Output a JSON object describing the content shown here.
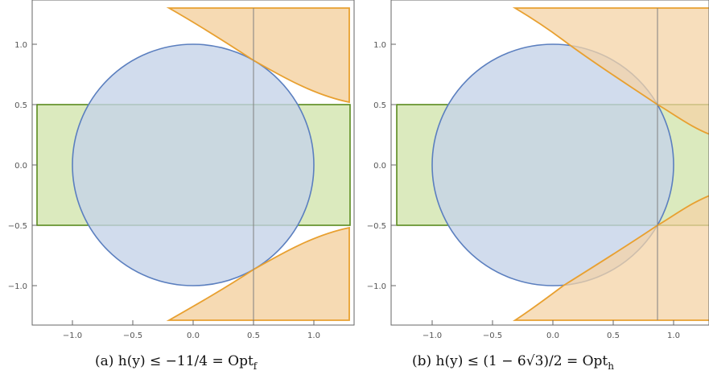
{
  "colors": {
    "circle_fill": "#c6d3e9",
    "circle_stroke": "#5b7fbf",
    "rect_fill": "#cfe3a8",
    "rect_stroke": "#5a8a1e",
    "region_fill": "#f4d3a6",
    "region_stroke": "#e8a030",
    "vline": "#808080",
    "frame": "#666666"
  },
  "panels": [
    {
      "id": "a",
      "caption": "(a)  h(y) ≤ −11/4 = Opt",
      "caption_sub": "f",
      "xticks": [
        "−1.0",
        "−0.5",
        "0.0",
        "0.5",
        "1.0"
      ],
      "yticks": [
        "1.0",
        "0.5",
        "0.0",
        "−0.5",
        "−1.0"
      ],
      "vline_x": 0.5
    },
    {
      "id": "b",
      "caption": "(b)  h(y) ≤ (1 − 6√3)/2 = Opt",
      "caption_sub": "h",
      "xticks": [
        "−1.0",
        "−0.5",
        "0.0",
        "0.5",
        "1.0"
      ],
      "yticks": [
        "1.0",
        "0.5",
        "0.0",
        "−0.5",
        "−1.0"
      ],
      "vline_x": 0.866
    }
  ]
}
